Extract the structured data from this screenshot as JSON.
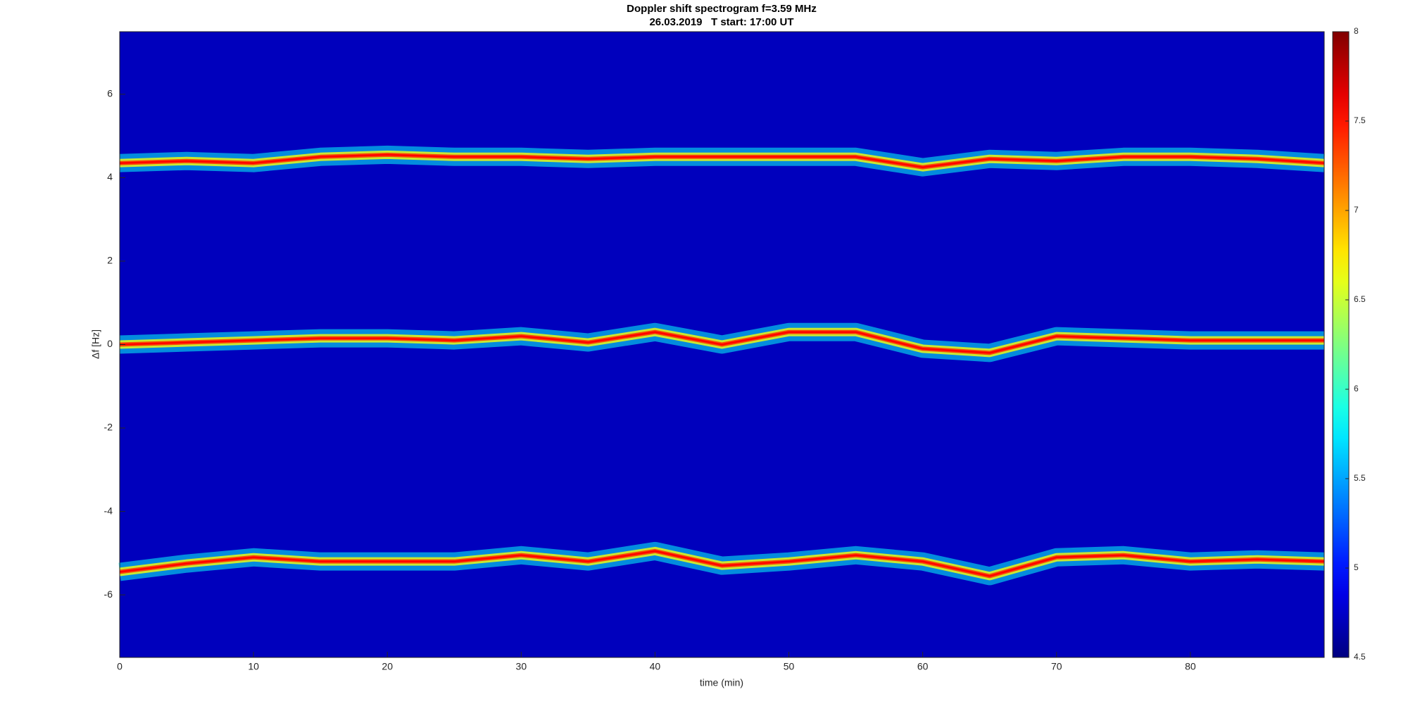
{
  "chart_data": {
    "type": "spectrogram",
    "title": "Doppler shift spectrogram f=3.59 MHz",
    "subtitle": "26.03.2019   T start: 17:00 UT",
    "xlabel": "time (min)",
    "ylabel": "Δf [Hz]",
    "xlim": [
      0,
      90
    ],
    "xticks": [
      0,
      10,
      20,
      30,
      40,
      50,
      60,
      70,
      80
    ],
    "ylim": [
      -7.5,
      7.5
    ],
    "yticks": [
      -6,
      -4,
      -2,
      0,
      2,
      4,
      6
    ],
    "colormap": "jet",
    "clim": [
      4.5,
      8
    ],
    "cticks": [
      4.5,
      5,
      5.5,
      6,
      6.5,
      7,
      7.5,
      8
    ],
    "x": [
      0,
      5,
      10,
      15,
      20,
      25,
      30,
      35,
      40,
      45,
      50,
      55,
      60,
      65,
      70,
      75,
      80,
      85,
      90
    ],
    "series": [
      {
        "color": "#ff0000",
        "values": [
          4.35,
          4.4,
          4.35,
          4.5,
          4.55,
          4.5,
          4.5,
          4.45,
          4.5,
          4.5,
          4.5,
          4.5,
          4.25,
          4.45,
          4.4,
          4.5,
          4.5,
          4.45,
          4.35
        ]
      },
      {
        "color": "#ff0000",
        "values": [
          0,
          0.05,
          0.1,
          0.15,
          0.15,
          0.1,
          0.2,
          0.05,
          0.3,
          0,
          0.3,
          0.3,
          -0.1,
          -0.2,
          0.2,
          0.15,
          0.1,
          0.1,
          0.1
        ]
      },
      {
        "color": "#ff0000",
        "values": [
          -5.45,
          -5.25,
          -5.1,
          -5.2,
          -5.2,
          -5.2,
          -5.05,
          -5.2,
          -4.95,
          -5.3,
          -5.2,
          -5.05,
          -5.2,
          -5.55,
          -5.1,
          -5.05,
          -5.2,
          -5.15,
          -5.2
        ]
      }
    ]
  }
}
